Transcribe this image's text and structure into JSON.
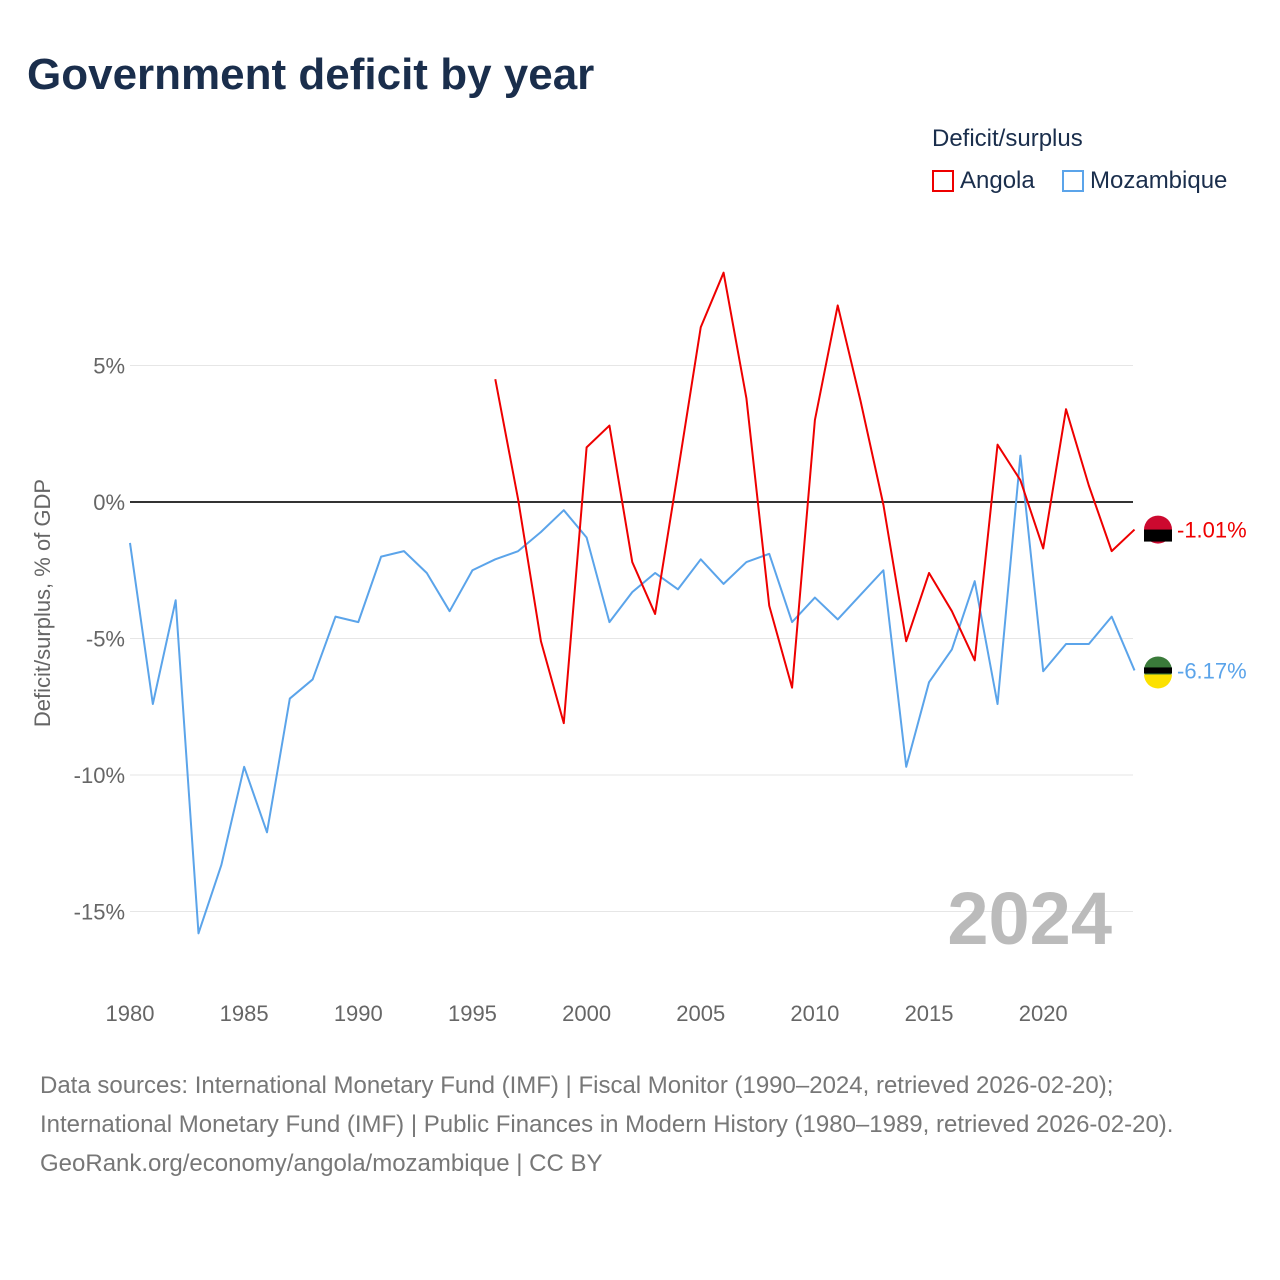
{
  "chart_data": {
    "type": "line",
    "title": "Government deficit by year",
    "ylabel": "Deficit/surplus, % of GDP",
    "xlabel": "",
    "ylim": [
      -17.5,
      10
    ],
    "xlim": [
      1980,
      2024
    ],
    "yticks": [
      5,
      0,
      -5,
      -10,
      -15
    ],
    "ytick_labels": [
      "5%",
      "0%",
      "-5%",
      "-10%",
      "-15%"
    ],
    "xticks": [
      "1980",
      "1985",
      "1990",
      "1995",
      "2000",
      "2005",
      "2010",
      "2015",
      "2020"
    ],
    "legend_title": "Deficit/surplus",
    "legend_position": "top-right",
    "year_label": "2024",
    "series": [
      {
        "name": "Angola",
        "color": "#ee0000",
        "end_label": "-1.01%",
        "x": [
          1996,
          1997,
          1998,
          1999,
          2000,
          2001,
          2002,
          2003,
          2004,
          2005,
          2006,
          2007,
          2008,
          2009,
          2010,
          2011,
          2012,
          2013,
          2014,
          2015,
          2016,
          2017,
          2018,
          2019,
          2020,
          2021,
          2022,
          2023,
          2024
        ],
        "values": [
          4.5,
          0.1,
          -5.1,
          -8.1,
          2.0,
          2.8,
          -2.2,
          -4.1,
          1.1,
          6.4,
          8.4,
          3.8,
          -3.8,
          -6.8,
          3.0,
          7.2,
          3.7,
          -0.1,
          -5.1,
          -2.6,
          -4.0,
          -5.8,
          2.1,
          0.8,
          -1.7,
          3.4,
          0.6,
          -1.8,
          -1.01
        ]
      },
      {
        "name": "Mozambique",
        "color": "#5ba4ea",
        "end_label": "-6.17%",
        "x": [
          1980,
          1981,
          1982,
          1983,
          1984,
          1985,
          1986,
          1987,
          1988,
          1989,
          1990,
          1991,
          1992,
          1993,
          1994,
          1995,
          1996,
          1997,
          1998,
          1999,
          2000,
          2001,
          2002,
          2003,
          2004,
          2005,
          2006,
          2007,
          2008,
          2009,
          2010,
          2011,
          2012,
          2013,
          2014,
          2015,
          2016,
          2017,
          2018,
          2019,
          2020,
          2021,
          2022,
          2023,
          2024
        ],
        "values": [
          -1.5,
          -7.4,
          -3.6,
          -15.8,
          -13.3,
          -9.7,
          -12.1,
          -7.2,
          -6.5,
          -4.2,
          -4.4,
          -2.0,
          -1.8,
          -2.6,
          -4.0,
          -2.5,
          -2.1,
          -1.8,
          -1.1,
          -0.3,
          -1.3,
          -4.4,
          -3.3,
          -2.6,
          -3.2,
          -2.1,
          -3.0,
          -2.2,
          -1.9,
          -4.4,
          -3.5,
          -4.3,
          -3.4,
          -2.5,
          -9.7,
          -6.6,
          -5.4,
          -2.9,
          -7.4,
          1.7,
          -6.2,
          -5.2,
          -5.2,
          -4.2,
          -6.17
        ]
      }
    ]
  },
  "footer": {
    "sources": "Data sources: International Monetary Fund (IMF) | Fiscal Monitor (1990–2024, retrieved 2026-02-20); International Monetary Fund (IMF) | Public Finances in Modern History (1980–1989, retrieved 2026-02-20).",
    "credit": "GeoRank.org/economy/angola/mozambique | CC BY"
  }
}
